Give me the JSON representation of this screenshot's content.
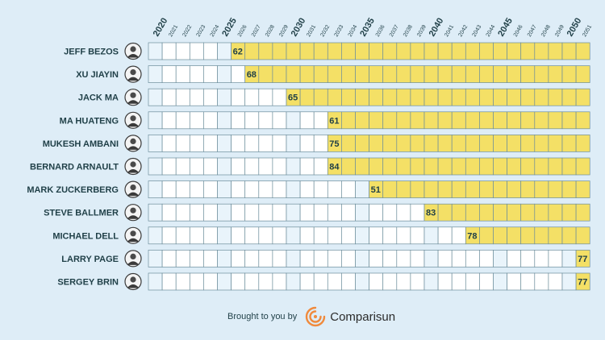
{
  "chart_data": {
    "type": "table",
    "years": [
      2020,
      2021,
      2022,
      2023,
      2024,
      2025,
      2026,
      2027,
      2028,
      2029,
      2030,
      2031,
      2032,
      2033,
      2034,
      2035,
      2036,
      2037,
      2038,
      2039,
      2040,
      2041,
      2042,
      2043,
      2044,
      2045,
      2046,
      2047,
      2048,
      2049,
      2050,
      2051
    ],
    "major_years": [
      2020,
      2025,
      2030,
      2035,
      2040,
      2045,
      2050
    ],
    "people": [
      {
        "name": "JEFF BEZOS",
        "start_year": 2026,
        "age": "62"
      },
      {
        "name": "XU JIAYIN",
        "start_year": 2027,
        "age": "68"
      },
      {
        "name": "JACK MA",
        "start_year": 2030,
        "age": "65"
      },
      {
        "name": "MA HUATENG",
        "start_year": 2033,
        "age": "61"
      },
      {
        "name": "MUKESH AMBANI",
        "start_year": 2033,
        "age": "75"
      },
      {
        "name": "BERNARD ARNAULT",
        "start_year": 2033,
        "age": "84"
      },
      {
        "name": "MARK ZUCKERBERG",
        "start_year": 2036,
        "age": "51"
      },
      {
        "name": "STEVE BALLMER",
        "start_year": 2040,
        "age": "83"
      },
      {
        "name": "MICHAEL DELL",
        "start_year": 2043,
        "age": "78"
      },
      {
        "name": "LARRY PAGE",
        "start_year": 2051,
        "age": "77"
      },
      {
        "name": "SERGEY BRIN",
        "start_year": 2051,
        "age": "77"
      }
    ],
    "colors": {
      "filled": "#f4e066",
      "empty": "#ffffff",
      "major_col": "#e9f4fb",
      "text": "#1f3f47",
      "grid": "#6d8e9c"
    }
  },
  "footer": {
    "brought_text": "Brought to you by",
    "brand": "Comparisun",
    "logo_icon": "comparisun-sun-logo-icon"
  }
}
